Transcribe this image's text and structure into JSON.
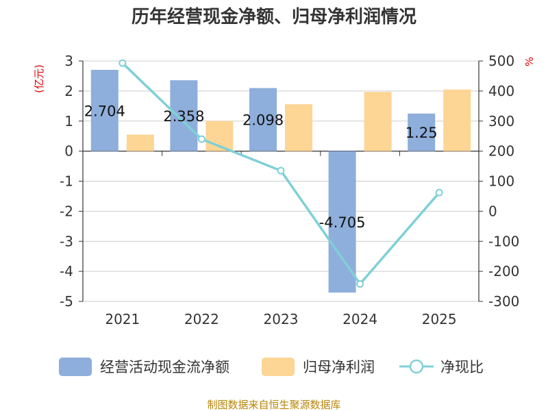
{
  "chart_data": {
    "type": "bar+line",
    "title": "历年经营现金净额、归母净利润情况",
    "categories": [
      "2021",
      "2022",
      "2023",
      "2024",
      "2025"
    ],
    "y_left": {
      "label": "(亿元)",
      "ylim": [
        -5,
        3
      ],
      "ticks": [
        3,
        2,
        1,
        0,
        -1,
        -2,
        -3,
        -4,
        -5
      ]
    },
    "y_right": {
      "label": "%",
      "ylim": [
        -300,
        500
      ],
      "ticks": [
        500,
        400,
        300,
        200,
        100,
        0,
        -100,
        -200,
        -300
      ]
    },
    "series": [
      {
        "name": "经营活动现金流净额",
        "type": "bar",
        "axis": "left",
        "color": "#8eaedb",
        "values": [
          2.704,
          2.358,
          2.098,
          -4.705,
          1.25
        ],
        "labels": [
          "2.704",
          "2.358",
          "2.098",
          "-4.705",
          "1.25"
        ]
      },
      {
        "name": "归母净利润",
        "type": "bar",
        "axis": "left",
        "color": "#fdd594",
        "values": [
          0.55,
          1.0,
          1.56,
          1.97,
          2.05
        ]
      },
      {
        "name": "净现比",
        "type": "line",
        "axis": "right",
        "color": "#7fd0d6",
        "values": [
          493,
          240,
          135,
          -242,
          62
        ]
      }
    ],
    "grid": true,
    "legend_position": "bottom"
  },
  "source": "制图数据来自恒生聚源数据库"
}
